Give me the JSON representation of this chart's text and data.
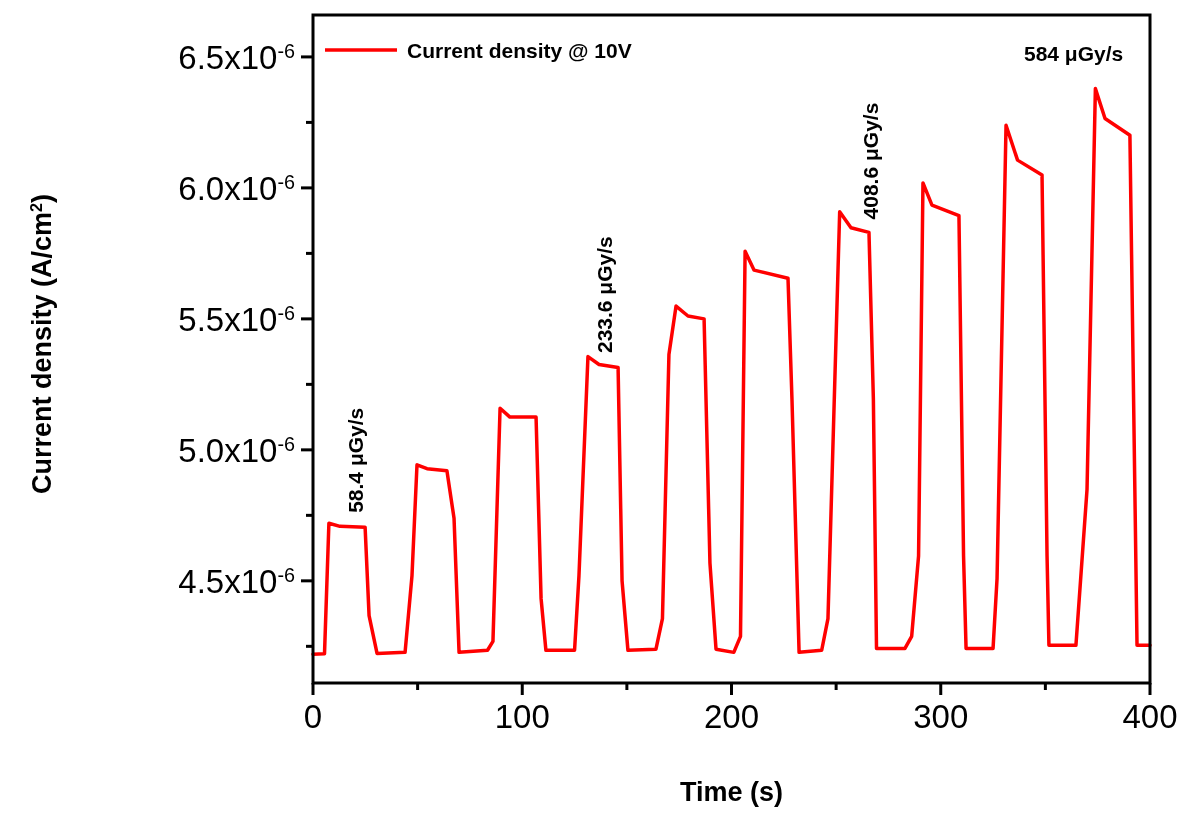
{
  "chart_data": {
    "type": "line",
    "xlabel": "Time (s)",
    "ylabel": "Current density (A/cm$^{2}$)",
    "xlim": [
      0,
      400
    ],
    "xticks": [
      0,
      {
        "value": 50,
        "label": null
      },
      100,
      {
        "value": 150,
        "label": null
      },
      200,
      {
        "value": 250,
        "label": null
      },
      300,
      {
        "value": 350,
        "label": null
      },
      400
    ],
    "ylim": [
      4.11e-06,
      6.66e-06
    ],
    "yticks": [
      {
        "value": 4.25e-06,
        "label": null
      },
      {
        "value": 4.5e-06,
        "label": "4.5x10$^{-6}$"
      },
      {
        "value": 4.75e-06,
        "label": null
      },
      {
        "value": 5e-06,
        "label": "5.0x10$^{-6}$"
      },
      {
        "value": 5.25e-06,
        "label": null
      },
      {
        "value": 5.5e-06,
        "label": "5.5x10$^{-6}$"
      },
      {
        "value": 5.75e-06,
        "label": null
      },
      {
        "value": 6e-06,
        "label": "6.0x10$^{-6}$"
      },
      {
        "value": 6.25e-06,
        "label": null
      },
      {
        "value": 6.5e-06,
        "label": "6.5x10$^{-6}$"
      }
    ],
    "legend": "top left",
    "marker": "none",
    "line_style": "solid",
    "grid": false,
    "series": [
      {
        "name": "Current density @ 10V",
        "color": "#ff0000",
        "x": [
          0,
          5.5,
          7.6,
          12.9,
          24.9,
          26.8,
          30.6,
          44.0,
          47.3,
          49.7,
          54.5,
          64.0,
          67.4,
          69.8,
          83.4,
          86.0,
          89.4,
          94.1,
          106.6,
          109.0,
          111.3,
          125.0,
          127.1,
          131.4,
          136.7,
          145.8,
          147.7,
          150.5,
          163.9,
          167.0,
          170.1,
          173.5,
          179.2,
          186.9,
          189.7,
          192.6,
          201.1,
          204.3,
          206.5,
          210.8,
          227.0,
          228.9,
          232.3,
          243.1,
          246.1,
          251.7,
          257.1,
          265.7,
          267.8,
          269.3,
          282.9,
          286.1,
          289.4,
          291.5,
          295.8,
          308.7,
          310.9,
          312.1,
          325.0,
          326.9,
          331.2,
          336.7,
          348.4,
          350.8,
          351.7,
          364.6,
          369.9,
          373.9,
          378.5,
          390.4,
          393.8,
          400
        ],
        "values": [
          4.22e-06,
          4.222e-06,
          4.72e-06,
          4.708e-06,
          4.705e-06,
          4.367e-06,
          4.223e-06,
          4.227e-06,
          4.519e-06,
          4.943e-06,
          4.928e-06,
          4.92e-06,
          4.739e-06,
          4.227e-06,
          4.235e-06,
          4.269e-06,
          5.159e-06,
          5.125e-06,
          5.125e-06,
          4.432e-06,
          4.235e-06,
          4.235e-06,
          4.519e-06,
          5.356e-06,
          5.326e-06,
          5.314e-06,
          4.5e-06,
          4.235e-06,
          4.239e-06,
          4.356e-06,
          5.364e-06,
          5.549e-06,
          5.511e-06,
          5.5e-06,
          4.568e-06,
          4.239e-06,
          4.227e-06,
          4.288e-06,
          5.758e-06,
          5.686e-06,
          5.655e-06,
          5.193e-06,
          4.227e-06,
          4.235e-06,
          4.356e-06,
          5.909e-06,
          5.848e-06,
          5.83e-06,
          5.193e-06,
          4.242e-06,
          4.242e-06,
          4.288e-06,
          4.595e-06,
          6.019e-06,
          5.934e-06,
          5.894e-06,
          4.595e-06,
          4.242e-06,
          4.242e-06,
          4.508e-06,
          6.239e-06,
          6.106e-06,
          6.049e-06,
          4.595e-06,
          4.254e-06,
          4.254e-06,
          4.848e-06,
          6.379e-06,
          6.265e-06,
          6.201e-06,
          4.254e-06,
          4.254e-06
        ]
      }
    ],
    "annotations": [
      {
        "text": "58.4 μGy/s",
        "x": 20,
        "y": 4.71e-06
      },
      {
        "text": "233.6 μGy/s",
        "x": 139,
        "y": 5.32e-06
      },
      {
        "text": "408.6 μGy/s",
        "x": 266,
        "y": 5.83e-06
      },
      {
        "text": "584 μGy/s",
        "x": 374,
        "y": 6.379e-06
      }
    ]
  }
}
